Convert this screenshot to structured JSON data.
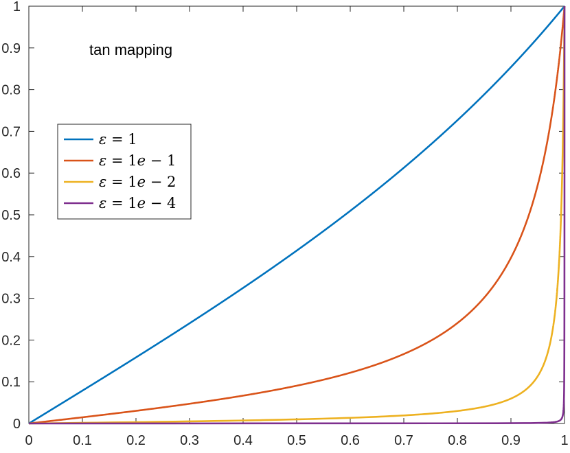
{
  "chart_data": {
    "type": "line",
    "title": "",
    "xlabel": "",
    "ylabel": "",
    "xlim": [
      0,
      1
    ],
    "ylim": [
      0,
      1
    ],
    "grid": false,
    "legend_position": "left",
    "x_ticks": [
      0,
      0.1,
      0.2,
      0.3,
      0.4,
      0.5,
      0.6,
      0.7,
      0.8,
      0.9,
      1
    ],
    "x_tick_labels": [
      "0",
      "0.1",
      "0.2",
      "0.3",
      "0.4",
      "0.5",
      "0.6",
      "0.7",
      "0.8",
      "0.9",
      "1"
    ],
    "y_ticks": [
      0,
      0.1,
      0.2,
      0.3,
      0.4,
      0.5,
      0.6,
      0.7,
      0.8,
      0.9,
      1
    ],
    "y_tick_labels": [
      "0",
      "0.1",
      "0.2",
      "0.3",
      "0.4",
      "0.5",
      "0.6",
      "0.7",
      "0.8",
      "0.9",
      "1"
    ],
    "annotation": "tan mapping",
    "series": [
      {
        "name": "ε = 1",
        "legend_parts": [
          [
            "ε",
            "it"
          ],
          [
            " = 1",
            ""
          ]
        ],
        "color": "#0072BD",
        "epsilon": 1,
        "x": [
          0,
          0.05,
          0.1,
          0.15,
          0.2,
          0.25,
          0.3,
          0.35,
          0.4,
          0.45,
          0.5,
          0.55,
          0.6,
          0.65,
          0.7,
          0.75,
          0.8,
          0.85,
          0.9,
          0.95,
          1
        ],
        "y": [
          0,
          0.039,
          0.078,
          0.118,
          0.158,
          0.199,
          0.24,
          0.283,
          0.326,
          0.37,
          0.415,
          0.462,
          0.51,
          0.56,
          0.612,
          0.666,
          0.722,
          0.78,
          0.842,
          0.908,
          1
        ]
      },
      {
        "name": "ε = 1e − 1",
        "legend_parts": [
          [
            "ε",
            "it"
          ],
          [
            " = 1",
            ""
          ],
          [
            "e",
            "it"
          ],
          [
            " − 1",
            ""
          ]
        ],
        "color": "#D95319",
        "epsilon": 0.1,
        "x": [
          0,
          0.05,
          0.1,
          0.15,
          0.2,
          0.25,
          0.3,
          0.35,
          0.4,
          0.45,
          0.5,
          0.55,
          0.6,
          0.65,
          0.7,
          0.75,
          0.8,
          0.85,
          0.9,
          0.93,
          0.95,
          0.97,
          0.98,
          0.99,
          1
        ],
        "y": [
          0,
          0.007,
          0.015,
          0.022,
          0.031,
          0.039,
          0.048,
          0.058,
          0.069,
          0.081,
          0.094,
          0.109,
          0.126,
          0.146,
          0.171,
          0.203,
          0.245,
          0.305,
          0.396,
          0.486,
          0.572,
          0.697,
          0.781,
          0.88,
          1
        ]
      },
      {
        "name": "ε = 1e − 2",
        "legend_parts": [
          [
            "ε",
            "it"
          ],
          [
            " = 1",
            ""
          ],
          [
            "e",
            "it"
          ],
          [
            " − 2",
            ""
          ]
        ],
        "color": "#EDB120",
        "epsilon": 0.01,
        "x": [
          0,
          0.1,
          0.2,
          0.3,
          0.4,
          0.5,
          0.6,
          0.7,
          0.8,
          0.85,
          0.9,
          0.93,
          0.95,
          0.96,
          0.97,
          0.975,
          0.98,
          0.985,
          0.99,
          0.995,
          1
        ],
        "y": [
          0,
          0.002,
          0.003,
          0.004,
          0.006,
          0.009,
          0.012,
          0.017,
          0.027,
          0.036,
          0.055,
          0.079,
          0.109,
          0.136,
          0.18,
          0.214,
          0.266,
          0.345,
          0.472,
          0.68,
          1
        ]
      },
      {
        "name": "ε = 1e − 4",
        "legend_parts": [
          [
            "ε",
            "it"
          ],
          [
            " = 1",
            ""
          ],
          [
            "e",
            "it"
          ],
          [
            " − 4",
            ""
          ]
        ],
        "color": "#7E2F8E",
        "epsilon": 0.0001,
        "x": [
          0,
          0.5,
          0.9,
          0.95,
          0.98,
          0.99,
          0.995,
          0.997,
          0.998,
          0.999,
          0.9995,
          0.9998,
          1
        ],
        "y": [
          0,
          0.0001,
          0.0006,
          0.0013,
          0.0032,
          0.0064,
          0.0127,
          0.0212,
          0.0318,
          0.0635,
          0.127,
          0.318,
          1
        ]
      }
    ]
  }
}
